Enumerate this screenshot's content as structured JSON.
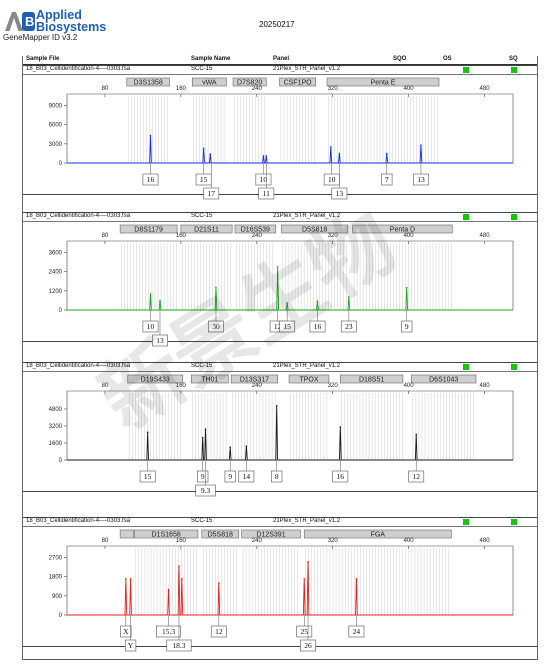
{
  "header": {
    "brand_line1": "Applied",
    "brand_line2": "Biosystems",
    "version": "GeneMapper ID v3.2",
    "date": "20250217"
  },
  "columns": {
    "sample_file": "Sample File",
    "sample_name": "Sample Name",
    "panel": "Panel",
    "sqo": "SQO",
    "os": "OS",
    "sq": "SQ"
  },
  "colors": {
    "blue": "#1a2ee8",
    "green": "#1aa81a",
    "black": "#1a1a1a",
    "red": "#e02020",
    "status_ok": "#16c216"
  },
  "watermark": "新景生物",
  "chart_data": [
    {
      "type": "line",
      "sample_file": "18_B03_Cellidentification-4----0303.fsa",
      "sample_name": "SCC-15",
      "panel": "21Plex_STR_Panel_v1.2",
      "dye": "blue",
      "loci": [
        {
          "name": "D3S1358",
          "start": 103,
          "end": 148
        },
        {
          "name": "vWA",
          "start": 172,
          "end": 208
        },
        {
          "name": "D7S820",
          "start": 215,
          "end": 250
        },
        {
          "name": "CSF1PO",
          "start": 264,
          "end": 302
        },
        {
          "name": "Penta E",
          "start": 314,
          "end": 432
        }
      ],
      "x_ticks": [
        80,
        160,
        240,
        320,
        400,
        480
      ],
      "y_ticks": [
        0,
        3000,
        6000,
        9000
      ],
      "ylim": [
        0,
        10500
      ],
      "peaks": [
        {
          "x": 128,
          "h": 4300
        },
        {
          "x": 184,
          "h": 2300
        },
        {
          "x": 191,
          "h": 1400
        },
        {
          "x": 247,
          "h": 1100
        },
        {
          "x": 250,
          "h": 1100
        },
        {
          "x": 318,
          "h": 2500
        },
        {
          "x": 327,
          "h": 1500
        },
        {
          "x": 377,
          "h": 1500
        },
        {
          "x": 413,
          "h": 2800
        }
      ],
      "labels": [
        {
          "text": "16",
          "x": 128,
          "row": 1
        },
        {
          "text": "15",
          "x": 184,
          "row": 1
        },
        {
          "text": "17",
          "x": 192,
          "row": 2
        },
        {
          "text": "10",
          "x": 247,
          "row": 1
        },
        {
          "text": "11",
          "x": 250,
          "row": 2
        },
        {
          "text": "10",
          "x": 319,
          "row": 1
        },
        {
          "text": "13",
          "x": 327,
          "row": 2
        },
        {
          "text": "7",
          "x": 377,
          "row": 1
        },
        {
          "text": "13",
          "x": 413,
          "row": 1
        }
      ]
    },
    {
      "type": "line",
      "sample_file": "18_B03_Cellidentification-4----0303.fsa",
      "sample_name": "SCC-15",
      "panel": "21Plex_STR_Panel_v1.2",
      "dye": "green",
      "loci": [
        {
          "name": "D8S1179",
          "start": 96,
          "end": 156
        },
        {
          "name": "D21S11",
          "start": 160,
          "end": 214
        },
        {
          "name": "D16S539",
          "start": 217,
          "end": 260
        },
        {
          "name": "D5S818",
          "start": 266,
          "end": 336
        },
        {
          "name": "Penta D",
          "start": 341,
          "end": 446
        }
      ],
      "x_ticks": [
        80,
        160,
        240,
        320,
        400,
        480
      ],
      "y_ticks": [
        0,
        1200,
        2400,
        3600
      ],
      "ylim": [
        0,
        4200
      ],
      "peaks": [
        {
          "x": 128,
          "h": 1000
        },
        {
          "x": 138,
          "h": 600
        },
        {
          "x": 197,
          "h": 1400
        },
        {
          "x": 262,
          "h": 2700
        },
        {
          "x": 272,
          "h": 450
        },
        {
          "x": 304,
          "h": 550
        },
        {
          "x": 337,
          "h": 850
        },
        {
          "x": 398,
          "h": 1400
        }
      ],
      "labels": [
        {
          "text": "10",
          "x": 128,
          "row": 1
        },
        {
          "text": "13",
          "x": 138,
          "row": 2
        },
        {
          "text": "30",
          "x": 197,
          "row": 1
        },
        {
          "text": "12",
          "x": 262,
          "row": 1
        },
        {
          "text": "15",
          "x": 272,
          "row": 1
        },
        {
          "text": "16",
          "x": 304,
          "row": 1
        },
        {
          "text": "23",
          "x": 337,
          "row": 1
        },
        {
          "text": "9",
          "x": 398,
          "row": 1
        }
      ]
    },
    {
      "type": "line",
      "sample_file": "18_B03_Cellidentification-4----0303.fsa",
      "sample_name": "SCC-15",
      "panel": "21Plex_STR_Panel_v1.2",
      "dye": "black",
      "loci": [
        {
          "name": "D19S433",
          "start": 104,
          "end": 162
        },
        {
          "name": "TH01",
          "start": 171,
          "end": 210
        },
        {
          "name": "D13S317",
          "start": 213,
          "end": 262
        },
        {
          "name": "TPOX",
          "start": 274,
          "end": 316
        },
        {
          "name": "D18S51",
          "start": 328,
          "end": 394
        },
        {
          "name": "D6S1043",
          "start": 403,
          "end": 471
        }
      ],
      "x_ticks": [
        80,
        160,
        240,
        320,
        400,
        480
      ],
      "y_ticks": [
        0,
        1600,
        3200,
        4800
      ],
      "ylim": [
        0,
        6300
      ],
      "peaks": [
        {
          "x": 125,
          "h": 2600
        },
        {
          "x": 183,
          "h": 2100
        },
        {
          "x": 186,
          "h": 2900
        },
        {
          "x": 212,
          "h": 1200
        },
        {
          "x": 229,
          "h": 1300
        },
        {
          "x": 261,
          "h": 5100
        },
        {
          "x": 328,
          "h": 3100
        },
        {
          "x": 408,
          "h": 2400
        }
      ],
      "labels": [
        {
          "text": "15",
          "x": 125,
          "row": 1
        },
        {
          "text": "9",
          "x": 183,
          "row": 1
        },
        {
          "text": "9.3",
          "x": 186,
          "row": 2
        },
        {
          "text": "9",
          "x": 212,
          "row": 1
        },
        {
          "text": "14",
          "x": 229,
          "row": 1
        },
        {
          "text": "8",
          "x": 261,
          "row": 1
        },
        {
          "text": "16",
          "x": 328,
          "row": 1
        },
        {
          "text": "12",
          "x": 408,
          "row": 1
        }
      ]
    },
    {
      "type": "line",
      "sample_file": "18_B03_Cellidentification-4----0303.fsa",
      "sample_name": "SCC-15",
      "panel": "21Plex_STR_Panel_v1.2",
      "dye": "red",
      "loci": [
        {
          "name": "",
          "start": 96,
          "end": 110
        },
        {
          "name": "D1S1656",
          "start": 111,
          "end": 178
        },
        {
          "name": "D5S818",
          "start": 182,
          "end": 221
        },
        {
          "name": "D12S391",
          "start": 224,
          "end": 286
        },
        {
          "name": "FGA",
          "start": 290,
          "end": 445
        }
      ],
      "x_ticks": [
        80,
        160,
        240,
        320,
        400,
        480
      ],
      "y_ticks": [
        0,
        900,
        1800,
        2700
      ],
      "ylim": [
        0,
        3150
      ],
      "peaks": [
        {
          "x": 102,
          "h": 1700
        },
        {
          "x": 107,
          "h": 1700
        },
        {
          "x": 147,
          "h": 1200
        },
        {
          "x": 158,
          "h": 2300
        },
        {
          "x": 161,
          "h": 1700
        },
        {
          "x": 200,
          "h": 1500
        },
        {
          "x": 290,
          "h": 1700
        },
        {
          "x": 294,
          "h": 2500
        },
        {
          "x": 345,
          "h": 1700
        }
      ],
      "labels": [
        {
          "text": "X",
          "x": 102,
          "row": 1
        },
        {
          "text": "Y",
          "x": 107,
          "row": 2
        },
        {
          "text": "15.3",
          "x": 147,
          "row": 1
        },
        {
          "text": "18.3",
          "x": 158,
          "row": 2
        },
        {
          "text": "12",
          "x": 200,
          "row": 1
        },
        {
          "text": "25",
          "x": 290,
          "row": 1
        },
        {
          "text": "26",
          "x": 294,
          "row": 2
        },
        {
          "text": "24",
          "x": 345,
          "row": 1
        }
      ]
    }
  ]
}
